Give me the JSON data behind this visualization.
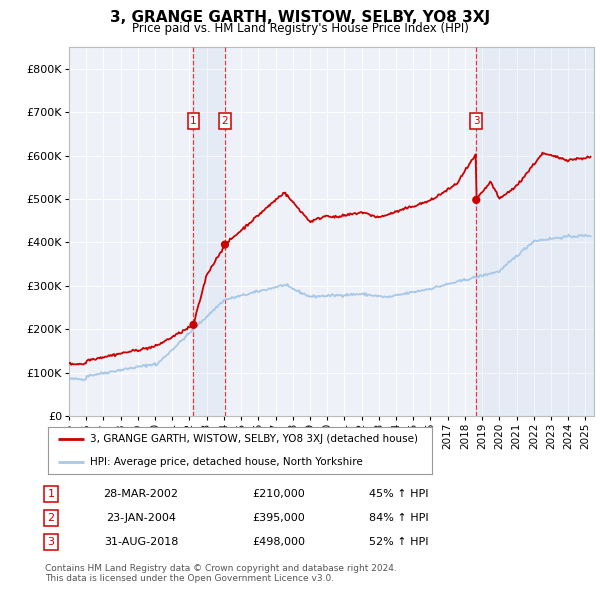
{
  "title": "3, GRANGE GARTH, WISTOW, SELBY, YO8 3XJ",
  "subtitle": "Price paid vs. HM Land Registry's House Price Index (HPI)",
  "hpi_color": "#a8c8e8",
  "price_color": "#cc0000",
  "background_color": "#ffffff",
  "plot_bg_color": "#eef2f8",
  "grid_color": "#ffffff",
  "ylim": [
    0,
    850000
  ],
  "yticks": [
    0,
    100000,
    200000,
    300000,
    400000,
    500000,
    600000,
    700000,
    800000
  ],
  "ytick_labels": [
    "£0",
    "£100K",
    "£200K",
    "£300K",
    "£400K",
    "£500K",
    "£600K",
    "£700K",
    "£800K"
  ],
  "sales": [
    {
      "date_num": 2002.23,
      "price": 210000,
      "label": "1"
    },
    {
      "date_num": 2004.06,
      "price": 395000,
      "label": "2"
    },
    {
      "date_num": 2018.66,
      "price": 498000,
      "label": "3"
    }
  ],
  "sale_table": [
    {
      "num": "1",
      "date": "28-MAR-2002",
      "price": "£210,000",
      "change": "45% ↑ HPI"
    },
    {
      "num": "2",
      "date": "23-JAN-2004",
      "price": "£395,000",
      "change": "84% ↑ HPI"
    },
    {
      "num": "3",
      "date": "31-AUG-2018",
      "price": "£498,000",
      "change": "52% ↑ HPI"
    }
  ],
  "legend_line1": "3, GRANGE GARTH, WISTOW, SELBY, YO8 3XJ (detached house)",
  "legend_line2": "HPI: Average price, detached house, North Yorkshire",
  "footnote": "Contains HM Land Registry data © Crown copyright and database right 2024.\nThis data is licensed under the Open Government Licence v3.0.",
  "xmin": 1995.0,
  "xmax": 2025.5
}
